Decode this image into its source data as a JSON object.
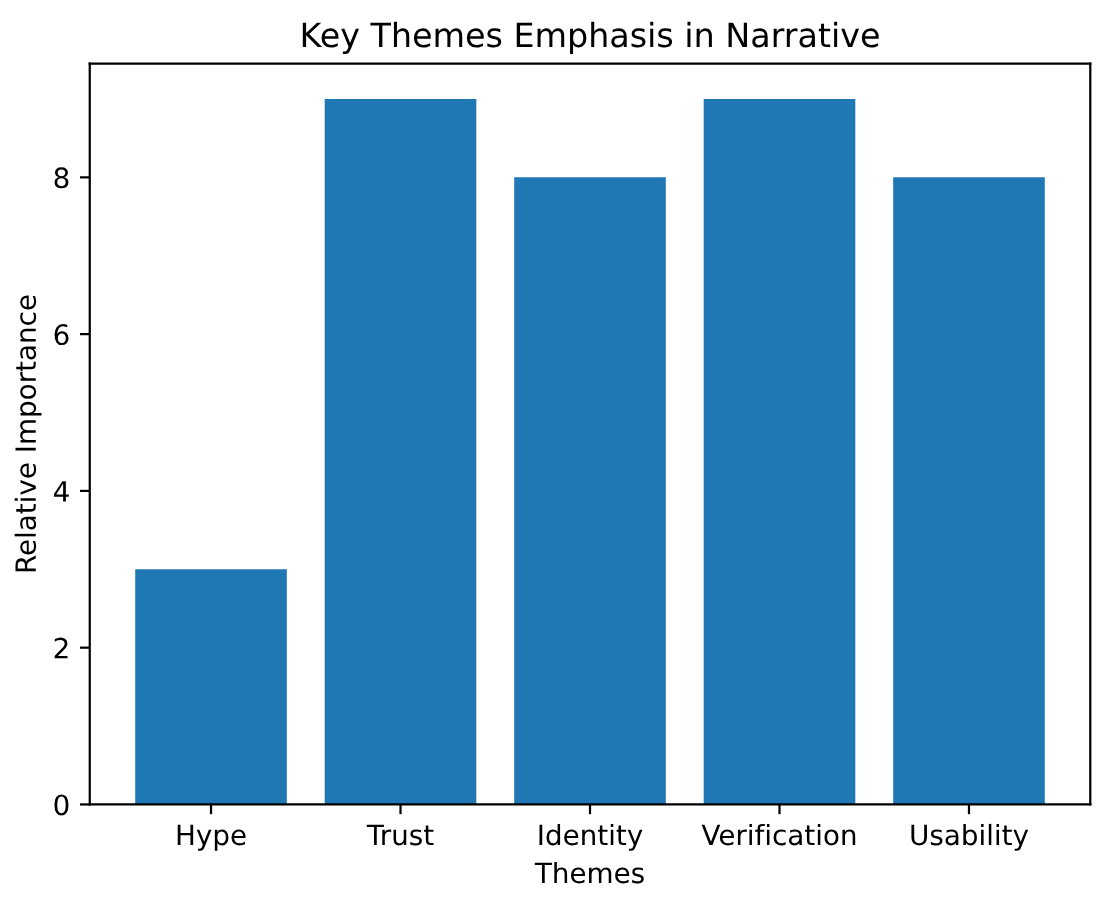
{
  "chart_data": {
    "type": "bar",
    "title": "Key Themes Emphasis in Narrative",
    "xlabel": "Themes",
    "ylabel": "Relative Importance",
    "categories": [
      "Hype",
      "Trust",
      "Identity",
      "Verification",
      "Usability"
    ],
    "values": [
      3,
      9,
      8,
      9,
      8
    ],
    "color": "#1f77b4",
    "ylim": [
      0,
      9.45
    ],
    "yticks": [
      0,
      2,
      4,
      6,
      8
    ],
    "grid": false
  }
}
